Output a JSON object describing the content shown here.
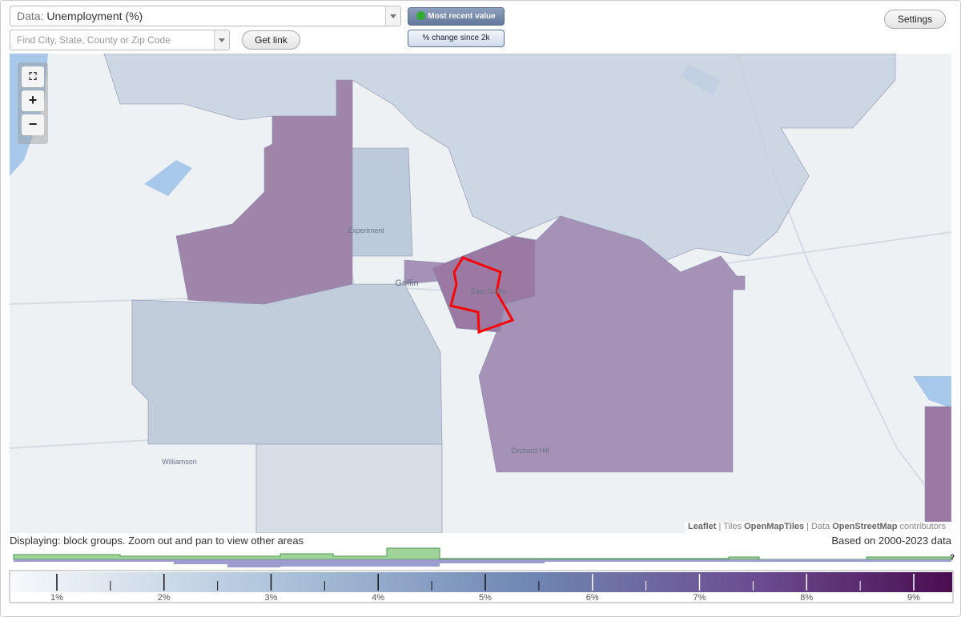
{
  "controls": {
    "data_label": "Data:",
    "data_value": "Unemployment (%)",
    "search_placeholder": "Find City, State, County or Zip Code",
    "get_link": "Get link",
    "most_recent": "Most recent value",
    "pct_change": "% change since 2k",
    "settings": "Settings",
    "zoom_in": "+",
    "zoom_out": "−"
  },
  "map": {
    "places": [
      "Experiment",
      "Griffin",
      "East Griffin",
      "Orchard Hill",
      "Williamson"
    ],
    "attribution": [
      "Leaflet",
      "|",
      "Tiles",
      "OpenMapTiles",
      "|",
      "Data",
      "OpenStreetMap",
      "contributors"
    ]
  },
  "status": {
    "displaying": "Displaying: block groups. Zoom out and pan to view other areas",
    "based_on": "Based on 2000-2023 data"
  },
  "legend": {
    "ticks": [
      "1%",
      "2%",
      "3%",
      "4%",
      "5%",
      "6%",
      "7%",
      "8%",
      "9%"
    ],
    "help": "?"
  }
}
